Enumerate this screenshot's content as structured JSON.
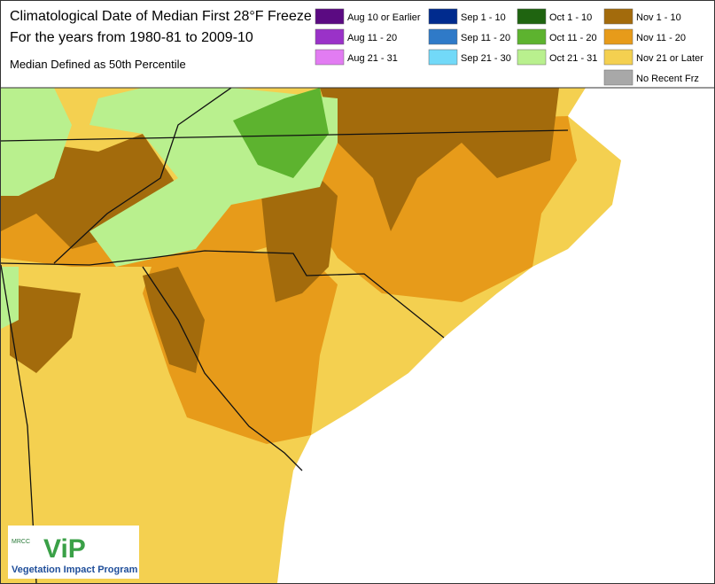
{
  "header": {
    "title_lines": [
      "Climatological Date of Median First 28°F Freeze",
      "For the years from 1980-81 to 2009-10"
    ],
    "subtitle": "Median Defined as 50th Percentile"
  },
  "legend": [
    {
      "label": "Aug 10 or Earlier",
      "color": "#5b0a82"
    },
    {
      "label": "Aug 11 - 20",
      "color": "#9a32c8"
    },
    {
      "label": "Aug 21 - 31",
      "color": "#e27cf2"
    },
    {
      "label": "Sep 1 - 10",
      "color": "#002b8e"
    },
    {
      "label": "Sep 11 - 20",
      "color": "#2f7ac8"
    },
    {
      "label": "Sep 21 - 30",
      "color": "#72d9f8"
    },
    {
      "label": "Oct 1 - 10",
      "color": "#1f6410"
    },
    {
      "label": "Oct 11 - 20",
      "color": "#5db32f"
    },
    {
      "label": "Oct 21 - 31",
      "color": "#b9f08e"
    },
    {
      "label": "Nov 1 - 10",
      "color": "#a36b0c"
    },
    {
      "label": "Nov 11 - 20",
      "color": "#e79b1a"
    },
    {
      "label": "Nov 21 or Later",
      "color": "#f4d050"
    },
    {
      "label": "No Recent Frz",
      "color": "#a8a8a8"
    }
  ],
  "logo": {
    "org": "MRCC",
    "mark": "ViP",
    "name": "Vegetation Impact Program"
  }
}
